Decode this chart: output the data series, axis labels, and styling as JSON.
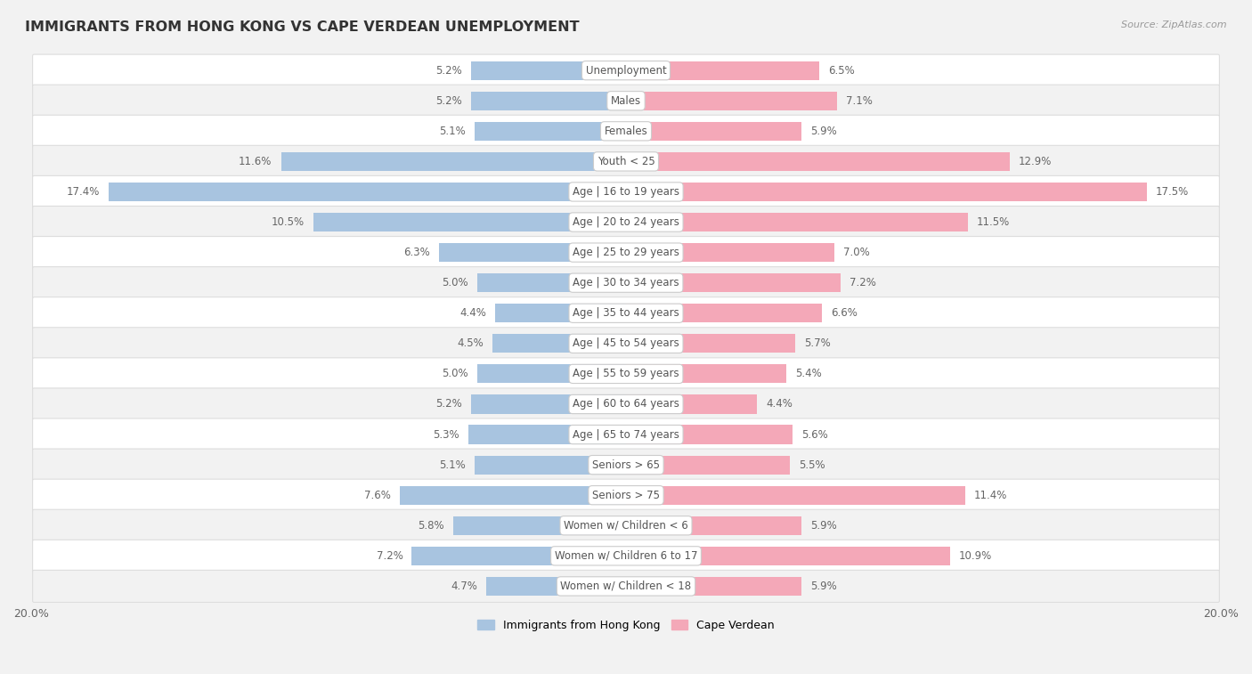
{
  "title": "IMMIGRANTS FROM HONG KONG VS CAPE VERDEAN UNEMPLOYMENT",
  "source": "Source: ZipAtlas.com",
  "categories": [
    "Unemployment",
    "Males",
    "Females",
    "Youth < 25",
    "Age | 16 to 19 years",
    "Age | 20 to 24 years",
    "Age | 25 to 29 years",
    "Age | 30 to 34 years",
    "Age | 35 to 44 years",
    "Age | 45 to 54 years",
    "Age | 55 to 59 years",
    "Age | 60 to 64 years",
    "Age | 65 to 74 years",
    "Seniors > 65",
    "Seniors > 75",
    "Women w/ Children < 6",
    "Women w/ Children 6 to 17",
    "Women w/ Children < 18"
  ],
  "left_values": [
    5.2,
    5.2,
    5.1,
    11.6,
    17.4,
    10.5,
    6.3,
    5.0,
    4.4,
    4.5,
    5.0,
    5.2,
    5.3,
    5.1,
    7.6,
    5.8,
    7.2,
    4.7
  ],
  "right_values": [
    6.5,
    7.1,
    5.9,
    12.9,
    17.5,
    11.5,
    7.0,
    7.2,
    6.6,
    5.7,
    5.4,
    4.4,
    5.6,
    5.5,
    11.4,
    5.9,
    10.9,
    5.9
  ],
  "left_color": "#a8c4e0",
  "right_color": "#f4a8b8",
  "left_label": "Immigrants from Hong Kong",
  "right_label": "Cape Verdean",
  "row_color_odd": "#f2f2f2",
  "row_color_even": "#ffffff",
  "row_border_color": "#dddddd",
  "background_color": "#f2f2f2",
  "axis_max": 20.0,
  "text_color": "#666666",
  "title_color": "#333333",
  "label_text_color": "#555555"
}
